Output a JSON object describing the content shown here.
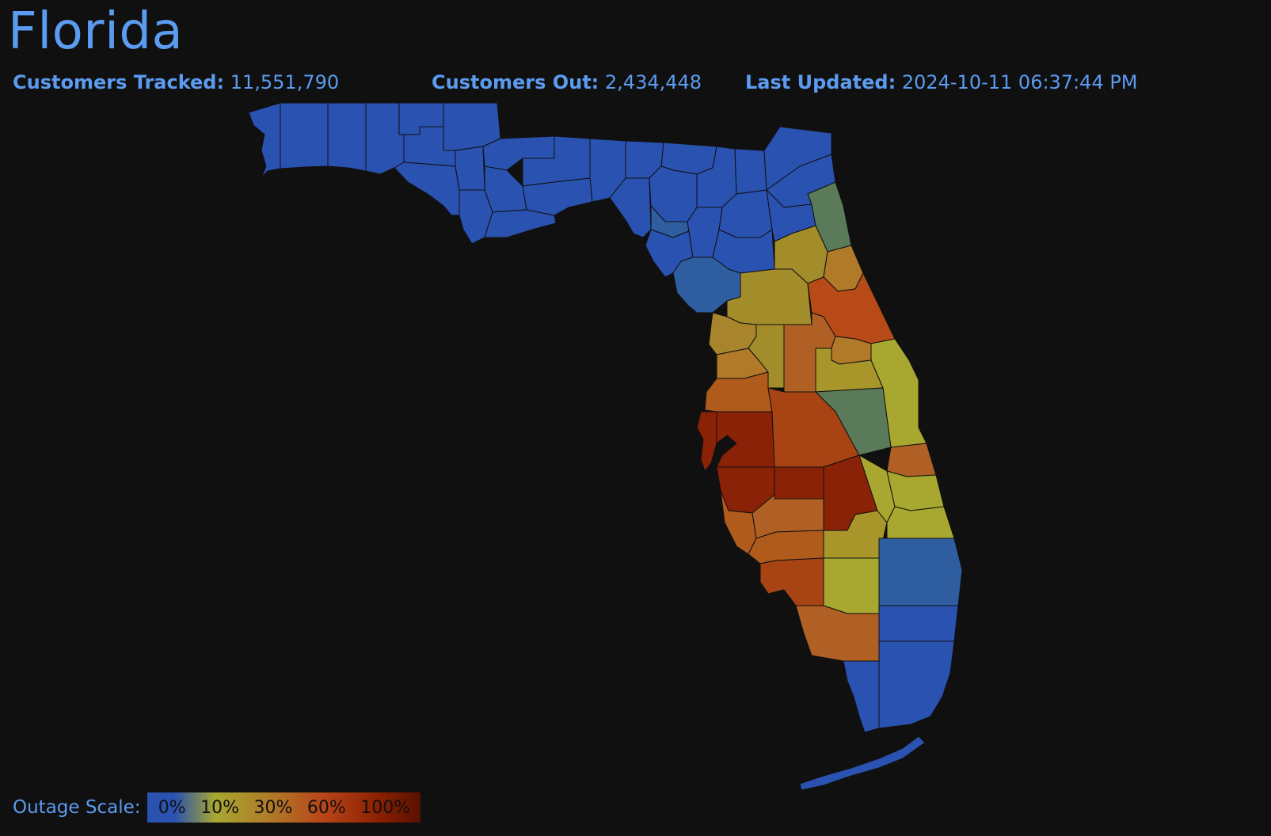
{
  "header": {
    "title": "Florida"
  },
  "stats": {
    "tracked_label": "Customers Tracked:",
    "tracked_value": "11,551,790",
    "out_label": "Customers Out:",
    "out_value": "2,434,448",
    "updated_label": "Last Updated:",
    "updated_value": "2024-10-11 06:37:44 PM"
  },
  "legend": {
    "label": "Outage Scale:",
    "ticks": [
      "0%",
      "10%",
      "30%",
      "60%",
      "100%"
    ]
  },
  "colors": {
    "background": "#101010",
    "text": "#5b9bf0",
    "scale_0": "#2a52b0",
    "scale_low_blue": "#2f5ea0",
    "scale_grey_green": "#5a7a5a",
    "scale_10": "#a8a830",
    "scale_20": "#a38c2a",
    "scale_30": "#b07a28",
    "scale_45": "#b05a1c",
    "scale_60": "#a84414",
    "scale_100": "#8a2208"
  }
}
